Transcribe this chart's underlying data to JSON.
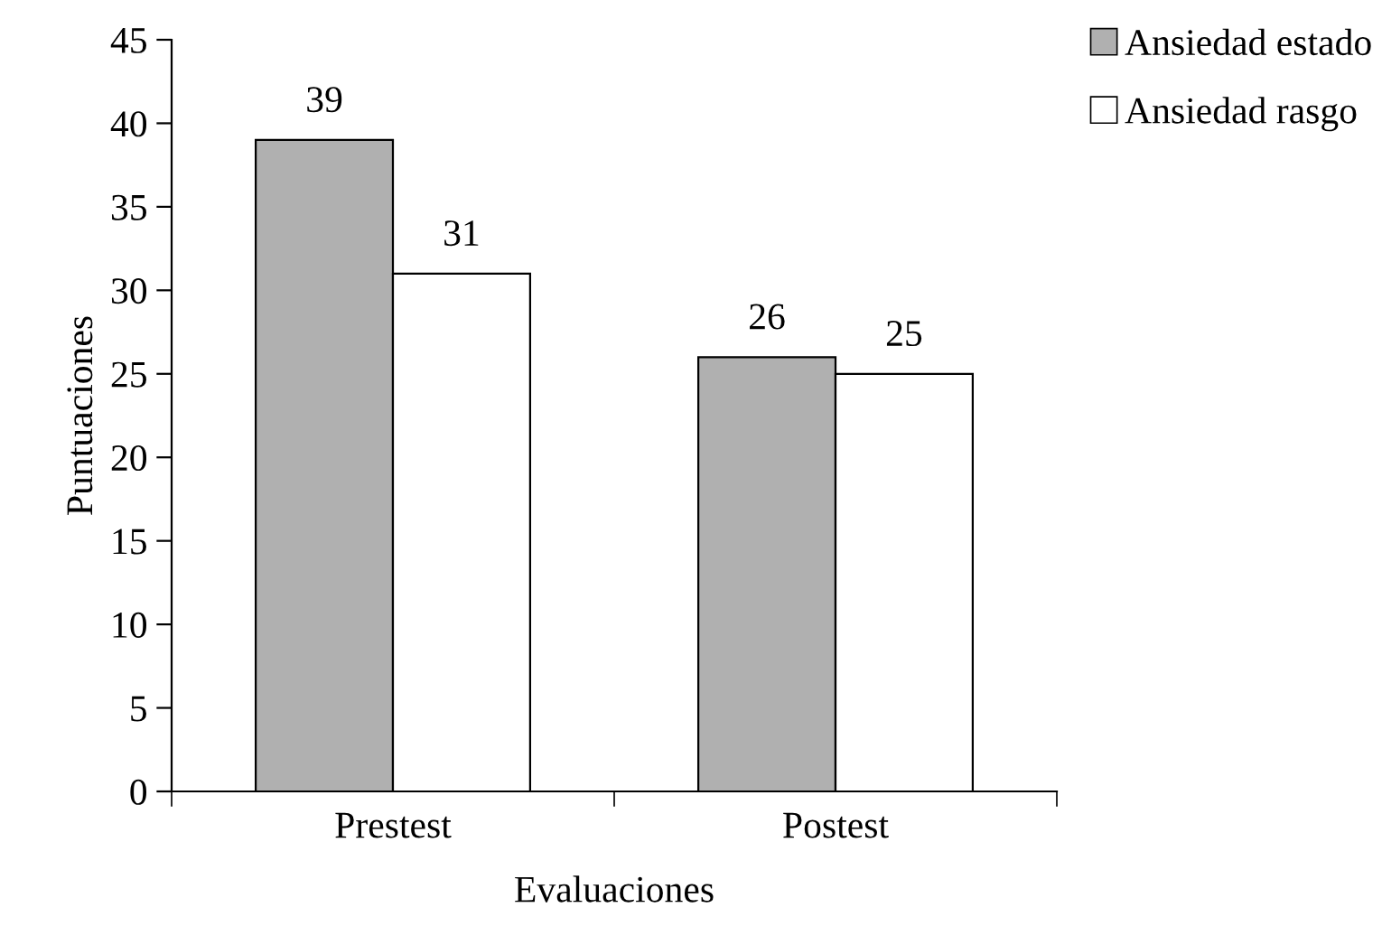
{
  "chart_data": {
    "type": "bar",
    "categories": [
      "Prestest",
      "Postest"
    ],
    "series": [
      {
        "name": "Ansiedad estado",
        "color": "#b0b0b0",
        "values": [
          39,
          26
        ]
      },
      {
        "name": "Ansiedad rasgo",
        "color": "#ffffff",
        "values": [
          31,
          25
        ]
      }
    ],
    "xlabel": "Evaluaciones",
    "ylabel": "Puntuaciones",
    "ylim": [
      0,
      45
    ],
    "yticks": [
      0,
      5,
      10,
      15,
      20,
      25,
      30,
      35,
      40,
      45
    ],
    "data_labels": true,
    "legend": "top right",
    "grid": false
  }
}
